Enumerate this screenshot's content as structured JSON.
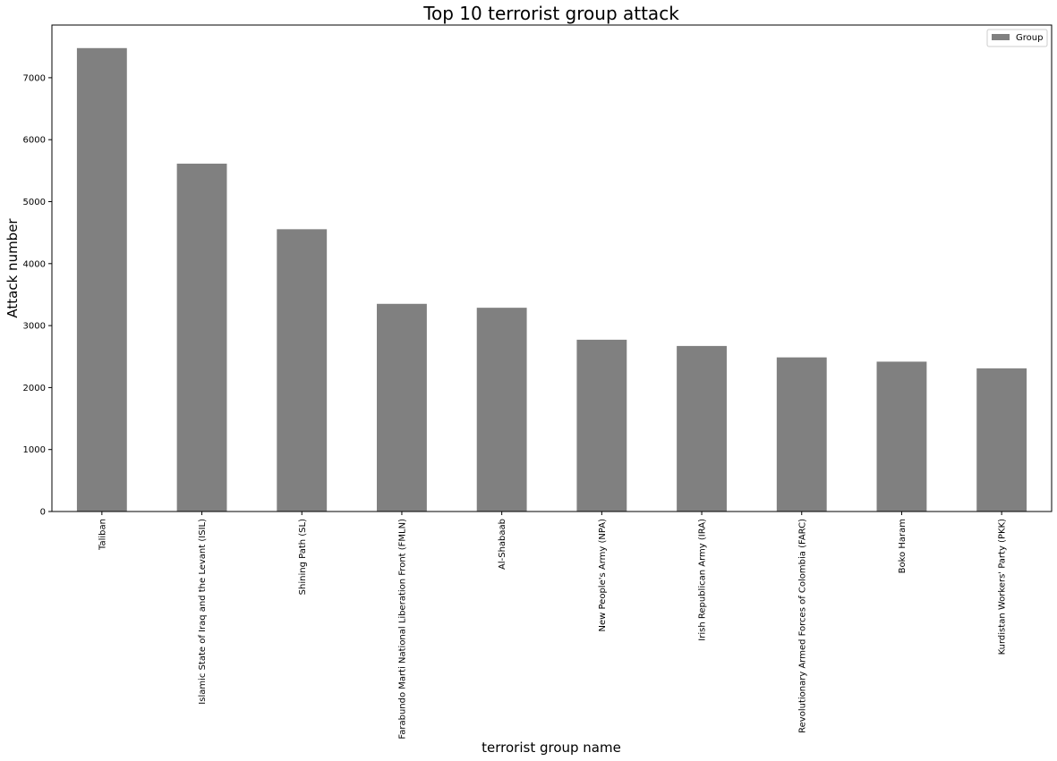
{
  "chart_data": {
    "type": "bar",
    "title": "Top 10 terrorist group attack",
    "xlabel": "terrorist group name",
    "ylabel": "Attack number",
    "categories": [
      "Taliban",
      "Islamic State of Iraq and the Levant (ISIL)",
      "Shining Path (SL)",
      "Farabundo Marti National Liberation Front (FMLN)",
      "Al-Shabaab",
      "New People's Army (NPA)",
      "Irish Republican Army (IRA)",
      "Revolutionary Armed Forces of Colombia (FARC)",
      "Boko Haram",
      "Kurdistan Workers' Party (PKK)"
    ],
    "series": [
      {
        "name": "Group",
        "color": "#808080",
        "values": [
          7478,
          5613,
          4555,
          3351,
          3288,
          2772,
          2671,
          2487,
          2418,
          2310
        ]
      }
    ],
    "ylim": [
      0,
      7850
    ],
    "yticks": [
      0,
      1000,
      2000,
      3000,
      4000,
      5000,
      6000,
      7000
    ],
    "grid": false,
    "legend_position": "top-right"
  }
}
